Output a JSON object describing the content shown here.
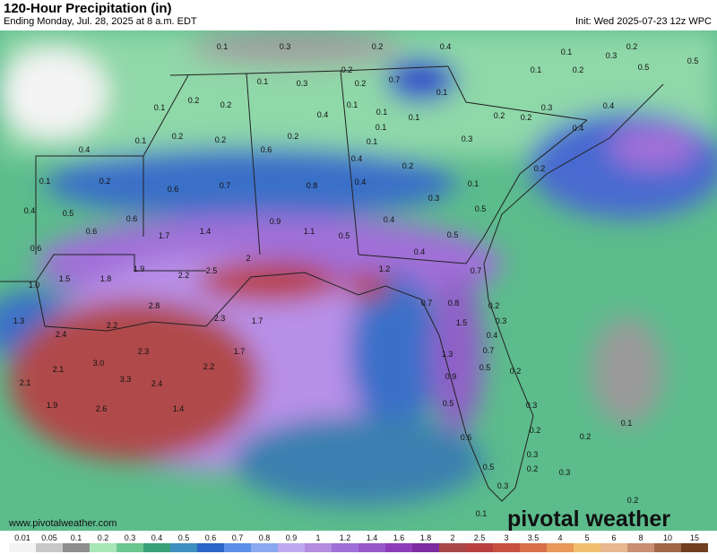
{
  "header": {
    "title": "120-Hour Precipitation (in)",
    "subtitle": "Ending Monday, Jul. 28, 2025 at 8 a.m. EDT",
    "init": "Init: Wed 2025-07-23 12z WPC"
  },
  "map": {
    "labels": [
      "0.1",
      "0.3",
      "0.2",
      "0.4",
      "0.2",
      "0.1",
      "0.1",
      "0.2",
      "0.3",
      "0.5",
      "0.5",
      "0.2",
      "0.7",
      "0.1",
      "0.3",
      "0.2",
      "0.1",
      "0.4",
      "0.2",
      "0.2",
      "0.1",
      "0.1",
      "0.1",
      "0.4",
      "0.1",
      "0.2",
      "0.2",
      "0.3",
      "0.4",
      "0.1",
      "0.2",
      "0.2",
      "0.2",
      "0.1",
      "0.4",
      "0.1",
      "0.3",
      "0.6",
      "0.4",
      "0.2",
      "0.2",
      "0.1",
      "0.2",
      "0.6",
      "0.7",
      "0.8",
      "0.4",
      "0.1",
      "0.3",
      "0.4",
      "0.5",
      "0.6",
      "0.9",
      "0.4",
      "0.5",
      "0.6",
      "1.7",
      "1.4",
      "1.1",
      "0.5",
      "0.5",
      "0.6",
      "0.4",
      "1.9",
      "2.2",
      "2.5",
      "2",
      "1.2",
      "1.5",
      "1.8",
      "1.0",
      "0.7",
      "2.8",
      "0.7",
      "0.8",
      "0.2",
      "1.3",
      "2.2",
      "2.3",
      "1.7",
      "1.5",
      "0.3",
      "2.4",
      "0.4",
      "2.3",
      "1.7",
      "0.7",
      "1.3",
      "3.0",
      "2.2",
      "0.5",
      "2.1",
      "0.2",
      "3.3",
      "2.4",
      "2.1",
      "0.9",
      "1.9",
      "0.5",
      "2.6",
      "1.4",
      "0.3",
      "0.1",
      "0.2",
      "0.2",
      "0.6",
      "0.3",
      "0.5",
      "0.2",
      "0.3",
      "0.3",
      "0.2",
      "0.1"
    ],
    "website": "www.pivotalweather.com",
    "logo": "pivotal weather"
  },
  "legend": {
    "labels": [
      "0.01",
      "0.05",
      "0.1",
      "0.2",
      "0.3",
      "0.4",
      "0.5",
      "0.6",
      "0.7",
      "0.8",
      "0.9",
      "1",
      "1.2",
      "1.4",
      "1.6",
      "1.8",
      "2",
      "2.5",
      "3",
      "3.5",
      "4",
      "5",
      "6",
      "8",
      "10",
      "15"
    ],
    "colors": [
      "#f4f4f4",
      "#c8c8c8",
      "#8e8e8e",
      "#a8e6b8",
      "#6cc690",
      "#38a07a",
      "#3e8fc0",
      "#2c64c8",
      "#5c8ee8",
      "#8aa8f0",
      "#c0a8f0",
      "#b48ce0",
      "#a070d8",
      "#9858c8",
      "#8c3cb8",
      "#7c2ca0",
      "#a84848",
      "#b84040",
      "#c85040",
      "#d8704c",
      "#e89858",
      "#f0c070",
      "#e8b890",
      "#c89070",
      "#a06848",
      "#704020"
    ]
  }
}
